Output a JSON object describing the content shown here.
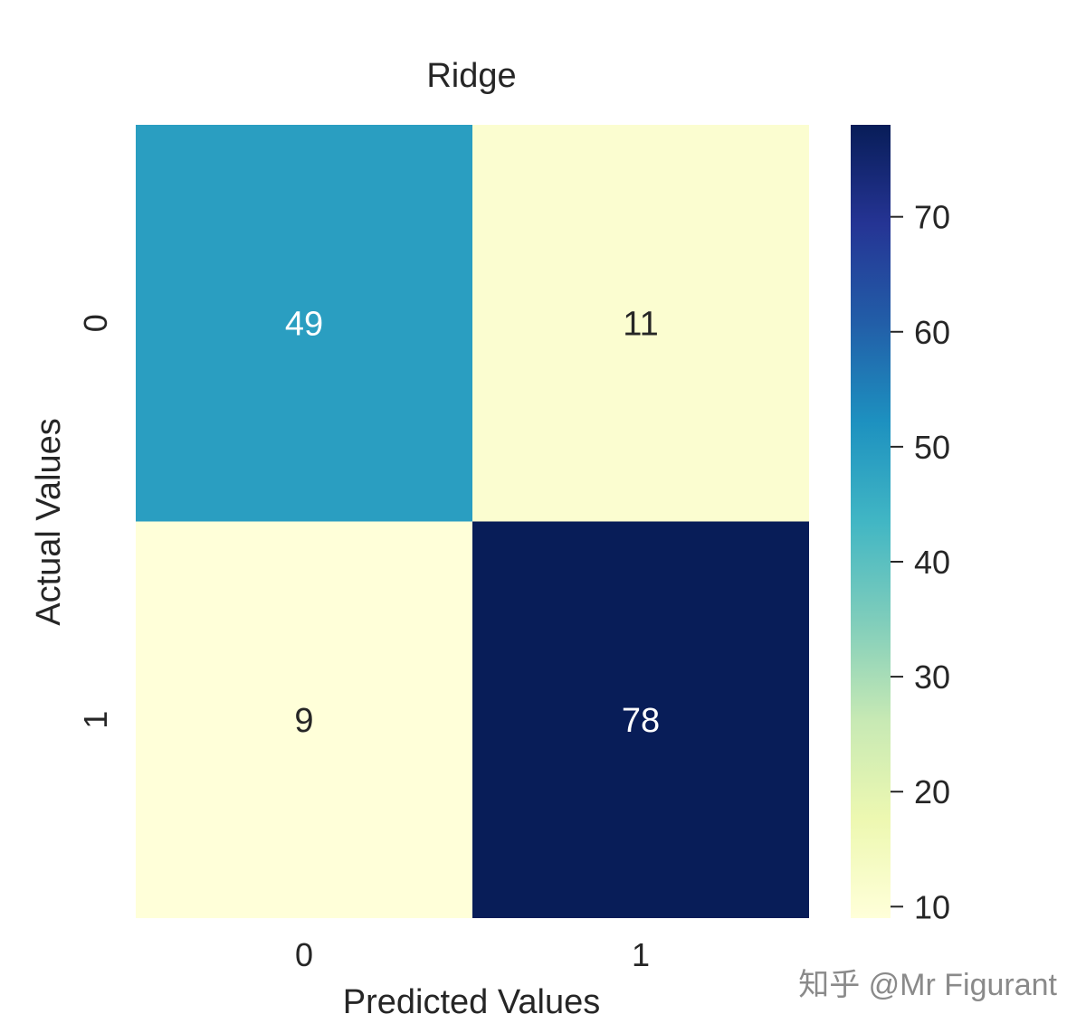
{
  "chart_data": {
    "type": "heatmap",
    "title": "Ridge",
    "xlabel": "Predicted Values",
    "ylabel": "Actual Values",
    "x_categories": [
      "0",
      "1"
    ],
    "y_categories": [
      "0",
      "1"
    ],
    "values": [
      [
        49,
        11
      ],
      [
        9,
        78
      ]
    ],
    "cell_labels": [
      [
        "49",
        "11"
      ],
      [
        "9",
        "78"
      ]
    ],
    "colormap": "YlGnBu",
    "colorbar": {
      "range": [
        9,
        78
      ],
      "ticks": [
        10,
        20,
        30,
        40,
        50,
        60,
        70
      ],
      "tick_labels": [
        "10",
        "20",
        "30",
        "40",
        "50",
        "60",
        "70"
      ]
    },
    "text_colors": {
      "dark": "#262626",
      "light": "#ffffff"
    }
  },
  "watermark": "知乎 @Mr Figurant"
}
